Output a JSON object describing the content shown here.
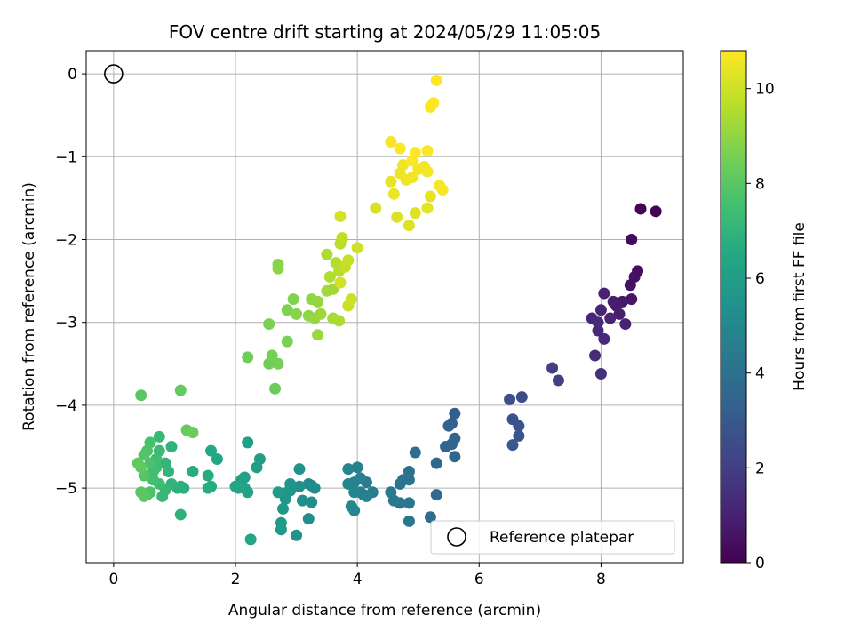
{
  "chart_data": {
    "type": "scatter",
    "title": "FOV centre drift starting at 2024/05/29 11:05:05",
    "xlabel": "Angular distance from reference (arcmin)",
    "ylabel": "Rotation from reference (arcmin)",
    "colorbar_label": "Hours from first FF file",
    "xlim": [
      -0.45,
      9.35
    ],
    "ylim": [
      -5.9,
      0.28
    ],
    "clim": [
      0,
      10.8
    ],
    "colormap": "viridis",
    "grid": true,
    "legend_position": "lower-right",
    "x_ticks": [
      "0",
      "2",
      "4",
      "6",
      "8"
    ],
    "y_ticks": [
      "0",
      "−1",
      "−2",
      "−3",
      "−4",
      "−5"
    ],
    "colorbar_ticks": [
      "0",
      "2",
      "4",
      "6",
      "8",
      "10"
    ],
    "reference_point": {
      "x": 0,
      "y": 0,
      "label": "Reference platepar"
    },
    "points": [
      [
        8.9,
        -1.66,
        0.05
      ],
      [
        8.65,
        -1.63,
        0.1
      ],
      [
        8.5,
        -2.0,
        0.25
      ],
      [
        8.6,
        -2.38,
        0.4
      ],
      [
        8.55,
        -2.45,
        0.45
      ],
      [
        8.48,
        -2.55,
        0.5
      ],
      [
        8.5,
        -2.72,
        0.6
      ],
      [
        8.35,
        -2.75,
        0.7
      ],
      [
        8.25,
        -2.8,
        0.8
      ],
      [
        8.3,
        -2.9,
        0.85
      ],
      [
        8.2,
        -2.75,
        0.9
      ],
      [
        8.05,
        -2.65,
        1.0
      ],
      [
        8.4,
        -3.02,
        1.05
      ],
      [
        8.15,
        -2.95,
        1.1
      ],
      [
        8.0,
        -2.85,
        1.15
      ],
      [
        7.85,
        -2.95,
        1.2
      ],
      [
        7.95,
        -3.1,
        1.25
      ],
      [
        8.05,
        -3.2,
        1.3
      ],
      [
        7.95,
        -3.0,
        1.35
      ],
      [
        7.9,
        -3.4,
        1.4
      ],
      [
        8.0,
        -3.62,
        1.5
      ],
      [
        7.2,
        -3.55,
        2.0
      ],
      [
        7.3,
        -3.7,
        2.1
      ],
      [
        6.7,
        -3.9,
        2.5
      ],
      [
        6.5,
        -3.93,
        2.6
      ],
      [
        6.55,
        -4.17,
        2.7
      ],
      [
        6.65,
        -4.25,
        2.8
      ],
      [
        6.65,
        -4.37,
        2.9
      ],
      [
        6.55,
        -4.48,
        3.0
      ],
      [
        5.6,
        -4.1,
        3.2
      ],
      [
        5.55,
        -4.22,
        3.3
      ],
      [
        5.5,
        -4.25,
        3.35
      ],
      [
        5.6,
        -4.4,
        3.4
      ],
      [
        5.55,
        -4.47,
        3.45
      ],
      [
        5.45,
        -4.5,
        3.5
      ],
      [
        5.6,
        -4.62,
        3.6
      ],
      [
        5.3,
        -4.7,
        3.65
      ],
      [
        5.3,
        -5.08,
        3.7
      ],
      [
        5.2,
        -5.35,
        3.8
      ],
      [
        4.95,
        -4.57,
        3.9
      ],
      [
        4.85,
        -4.8,
        4.0
      ],
      [
        4.75,
        -4.9,
        4.05
      ],
      [
        4.85,
        -4.9,
        4.1
      ],
      [
        4.7,
        -4.95,
        4.15
      ],
      [
        4.7,
        -5.18,
        4.2
      ],
      [
        4.85,
        -5.18,
        4.25
      ],
      [
        4.85,
        -5.4,
        4.3
      ],
      [
        4.55,
        -5.05,
        4.35
      ],
      [
        4.6,
        -5.15,
        4.4
      ],
      [
        4.25,
        -5.05,
        4.45
      ],
      [
        4.15,
        -4.93,
        4.5
      ],
      [
        4.1,
        -5.08,
        4.55
      ],
      [
        4.05,
        -5.05,
        4.6
      ],
      [
        4.15,
        -5.1,
        4.65
      ],
      [
        4.05,
        -4.88,
        4.7
      ],
      [
        3.95,
        -4.93,
        4.75
      ],
      [
        4.0,
        -4.75,
        4.8
      ],
      [
        3.85,
        -4.77,
        4.85
      ],
      [
        3.85,
        -4.95,
        4.9
      ],
      [
        3.95,
        -5.05,
        4.95
      ],
      [
        3.9,
        -5.22,
        5.0
      ],
      [
        3.95,
        -5.27,
        5.05
      ],
      [
        3.2,
        -4.95,
        5.1
      ],
      [
        3.25,
        -4.97,
        5.15
      ],
      [
        3.3,
        -5.0,
        5.2
      ],
      [
        3.25,
        -5.17,
        5.25
      ],
      [
        3.2,
        -5.37,
        5.3
      ],
      [
        3.1,
        -5.15,
        5.35
      ],
      [
        3.05,
        -4.98,
        5.4
      ],
      [
        3.05,
        -4.77,
        5.45
      ],
      [
        3.0,
        -5.57,
        5.5
      ],
      [
        2.9,
        -4.95,
        5.55
      ],
      [
        2.9,
        -5.03,
        5.6
      ],
      [
        2.85,
        -5.05,
        5.65
      ],
      [
        2.82,
        -5.13,
        5.7
      ],
      [
        2.78,
        -5.25,
        5.75
      ],
      [
        2.75,
        -5.42,
        5.8
      ],
      [
        2.75,
        -5.5,
        5.85
      ],
      [
        2.7,
        -5.05,
        5.9
      ],
      [
        2.4,
        -4.65,
        5.95
      ],
      [
        2.35,
        -4.75,
        6.0
      ],
      [
        2.2,
        -4.45,
        6.05
      ],
      [
        2.15,
        -4.87,
        6.1
      ],
      [
        2.1,
        -4.9,
        6.15
      ],
      [
        2.15,
        -5.0,
        6.2
      ],
      [
        2.2,
        -5.05,
        6.25
      ],
      [
        2.05,
        -5.0,
        6.3
      ],
      [
        2.0,
        -4.98,
        6.35
      ],
      [
        2.25,
        -5.62,
        6.4
      ],
      [
        1.7,
        -4.65,
        6.45
      ],
      [
        1.6,
        -4.55,
        6.5
      ],
      [
        1.55,
        -4.85,
        6.55
      ],
      [
        1.6,
        -4.98,
        6.6
      ],
      [
        1.55,
        -5.0,
        6.65
      ],
      [
        1.3,
        -4.8,
        6.7
      ],
      [
        1.15,
        -5.0,
        6.75
      ],
      [
        1.1,
        -4.98,
        6.8
      ],
      [
        1.05,
        -5.0,
        6.85
      ],
      [
        1.1,
        -5.32,
        6.9
      ],
      [
        0.95,
        -4.5,
        6.95
      ],
      [
        0.95,
        -4.95,
        7.0
      ],
      [
        0.9,
        -4.8,
        7.05
      ],
      [
        0.85,
        -4.7,
        7.1
      ],
      [
        0.85,
        -5.02,
        7.15
      ],
      [
        0.8,
        -5.1,
        7.2
      ],
      [
        0.75,
        -4.38,
        7.25
      ],
      [
        0.75,
        -4.55,
        7.3
      ],
      [
        0.75,
        -4.95,
        7.35
      ],
      [
        0.7,
        -4.65,
        7.4
      ],
      [
        0.7,
        -4.75,
        7.45
      ],
      [
        0.65,
        -4.8,
        7.5
      ],
      [
        0.65,
        -4.9,
        7.55
      ],
      [
        0.6,
        -4.45,
        7.6
      ],
      [
        0.6,
        -4.7,
        7.65
      ],
      [
        0.6,
        -5.05,
        7.7
      ],
      [
        0.55,
        -4.55,
        7.75
      ],
      [
        0.55,
        -5.08,
        7.8
      ],
      [
        0.5,
        -4.6,
        7.85
      ],
      [
        0.5,
        -4.85,
        7.9
      ],
      [
        0.5,
        -5.1,
        7.95
      ],
      [
        0.45,
        -3.88,
        8.0
      ],
      [
        0.45,
        -5.05,
        8.05
      ],
      [
        0.45,
        -4.75,
        8.1
      ],
      [
        0.4,
        -4.7,
        8.15
      ],
      [
        1.1,
        -3.82,
        8.2
      ],
      [
        1.2,
        -4.3,
        8.25
      ],
      [
        1.3,
        -4.33,
        8.3
      ],
      [
        2.65,
        -3.8,
        8.35
      ],
      [
        2.2,
        -3.42,
        8.4
      ],
      [
        2.55,
        -3.5,
        8.45
      ],
      [
        2.6,
        -3.4,
        8.5
      ],
      [
        2.7,
        -3.5,
        8.55
      ],
      [
        2.85,
        -3.23,
        8.6
      ],
      [
        2.55,
        -3.02,
        8.65
      ],
      [
        2.85,
        -2.85,
        8.7
      ],
      [
        2.95,
        -2.72,
        8.75
      ],
      [
        3.0,
        -2.9,
        8.8
      ],
      [
        2.7,
        -2.3,
        8.85
      ],
      [
        2.7,
        -2.35,
        8.9
      ],
      [
        3.2,
        -2.92,
        8.95
      ],
      [
        3.25,
        -2.72,
        9.0
      ],
      [
        3.35,
        -2.75,
        9.05
      ],
      [
        3.3,
        -2.95,
        9.1
      ],
      [
        3.35,
        -3.15,
        9.15
      ],
      [
        3.4,
        -2.9,
        9.2
      ],
      [
        3.5,
        -2.62,
        9.25
      ],
      [
        3.6,
        -2.6,
        9.3
      ],
      [
        3.6,
        -2.95,
        9.35
      ],
      [
        3.7,
        -2.98,
        9.4
      ],
      [
        3.5,
        -2.18,
        9.45
      ],
      [
        3.55,
        -2.45,
        9.5
      ],
      [
        3.65,
        -2.28,
        9.55
      ],
      [
        3.7,
        -2.38,
        9.6
      ],
      [
        3.72,
        -2.05,
        9.65
      ],
      [
        3.78,
        -2.33,
        9.7
      ],
      [
        3.75,
        -1.98,
        9.75
      ],
      [
        3.8,
        -2.33,
        9.8
      ],
      [
        3.85,
        -2.25,
        9.85
      ],
      [
        3.85,
        -2.8,
        9.9
      ],
      [
        3.9,
        -2.72,
        9.95
      ],
      [
        4.0,
        -2.1,
        10.0
      ],
      [
        3.72,
        -2.52,
        10.05
      ],
      [
        3.72,
        -1.72,
        10.1
      ],
      [
        4.3,
        -1.62,
        10.15
      ],
      [
        4.65,
        -1.73,
        10.2
      ],
      [
        4.85,
        -1.83,
        10.25
      ],
      [
        4.95,
        -1.68,
        10.3
      ],
      [
        5.15,
        -1.62,
        10.35
      ],
      [
        5.2,
        -1.48,
        10.4
      ],
      [
        4.55,
        -1.3,
        10.45
      ],
      [
        4.6,
        -1.45,
        10.5
      ],
      [
        4.7,
        -1.2,
        10.52
      ],
      [
        4.75,
        -1.1,
        10.55
      ],
      [
        4.8,
        -1.28,
        10.58
      ],
      [
        4.9,
        -1.25,
        10.6
      ],
      [
        5.0,
        -1.15,
        10.62
      ],
      [
        5.1,
        -1.12,
        10.64
      ],
      [
        5.15,
        -1.18,
        10.66
      ],
      [
        5.35,
        -1.35,
        10.68
      ],
      [
        5.4,
        -1.4,
        10.7
      ],
      [
        4.55,
        -0.82,
        10.72
      ],
      [
        4.7,
        -0.9,
        10.74
      ],
      [
        4.9,
        -1.05,
        10.75
      ],
      [
        4.95,
        -0.95,
        10.76
      ],
      [
        5.15,
        -0.93,
        10.77
      ],
      [
        5.2,
        -0.4,
        10.78
      ],
      [
        5.25,
        -0.35,
        10.79
      ],
      [
        5.3,
        -0.08,
        10.8
      ]
    ]
  }
}
